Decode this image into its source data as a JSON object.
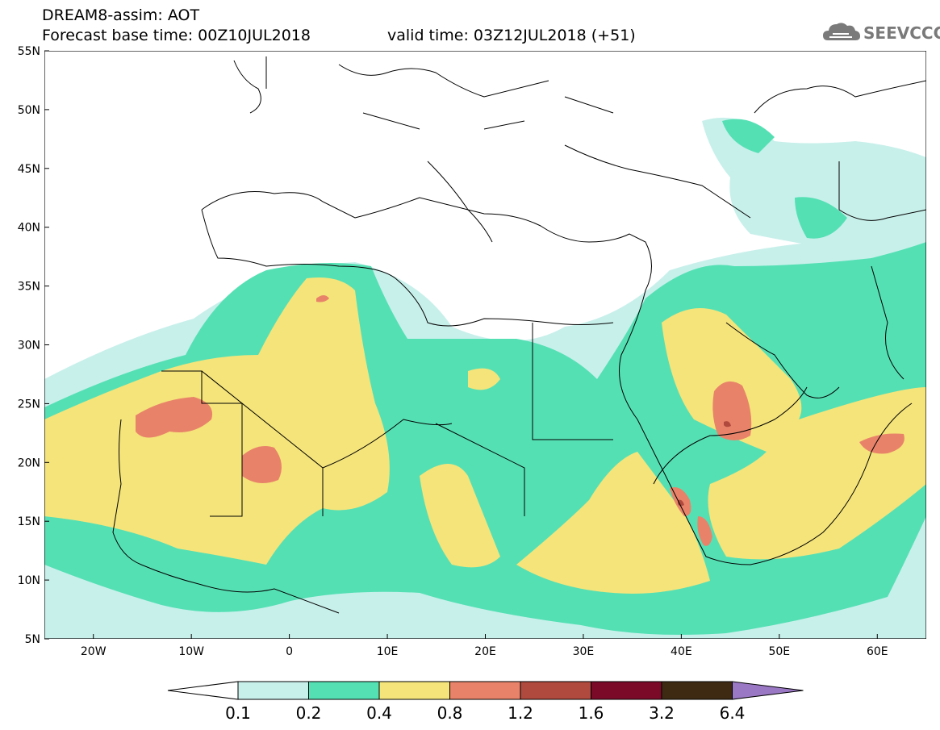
{
  "header": {
    "line1": "DREAM8-assim: AOT",
    "line2": "Forecast base time: 00Z10JUL2018",
    "valid_time": "valid time: 03Z12JUL2018 (+51)"
  },
  "logo": {
    "text": "SEEVCCC",
    "icon": "cloud-icon"
  },
  "map": {
    "lon_range": [
      -25,
      65
    ],
    "lat_range": [
      5,
      55
    ],
    "lon_ticks": [
      "20W",
      "10W",
      "0",
      "10E",
      "20E",
      "30E",
      "40E",
      "50E",
      "60E"
    ],
    "lat_ticks": [
      "5N",
      "10N",
      "15N",
      "20N",
      "25N",
      "30N",
      "35N",
      "40N",
      "45N",
      "50N",
      "55N"
    ],
    "colors": {
      "aot_0_1": "#c8f0eb",
      "aot_0_2": "#55e0b4",
      "aot_0_4": "#f5e47a",
      "aot_0_8": "#e8836a",
      "aot_1_2": "#b04a3e"
    }
  },
  "colorbar": {
    "labels": [
      "0.1",
      "0.2",
      "0.4",
      "0.8",
      "1.2",
      "1.6",
      "3.2",
      "6.4"
    ],
    "colors": [
      "#ffffff",
      "#c8f0eb",
      "#55e0b4",
      "#f5e47a",
      "#e8836a",
      "#b04a3e",
      "#7a0a28",
      "#3e2a12",
      "#9a78c4"
    ]
  }
}
